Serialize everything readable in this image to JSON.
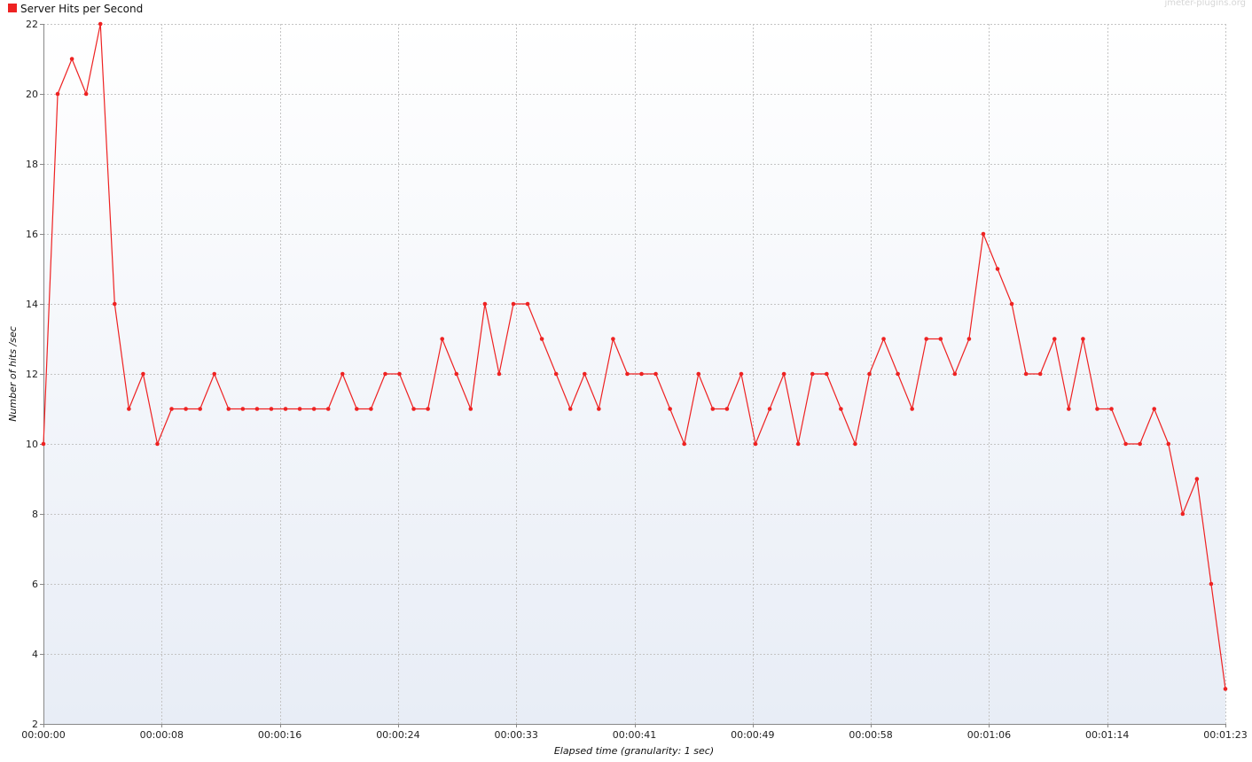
{
  "watermark": "jmeter-plugins.org",
  "chart_data": {
    "type": "line",
    "legend_position": "top-left",
    "grid": true,
    "xlabel": "Elapsed time (granularity: 1 sec)",
    "ylabel": "Number of hits /sec",
    "ylim": [
      2,
      22
    ],
    "y_ticks": [
      2,
      4,
      6,
      8,
      10,
      12,
      14,
      16,
      18,
      20,
      22
    ],
    "xlim_seconds": [
      0,
      83
    ],
    "x_ticks": [
      {
        "seconds": 0,
        "label": "00:00:00"
      },
      {
        "seconds": 8.3,
        "label": "00:00:08"
      },
      {
        "seconds": 16.6,
        "label": "00:00:16"
      },
      {
        "seconds": 24.9,
        "label": "00:00:24"
      },
      {
        "seconds": 33.2,
        "label": "00:00:33"
      },
      {
        "seconds": 41.5,
        "label": "00:00:41"
      },
      {
        "seconds": 49.8,
        "label": "00:00:49"
      },
      {
        "seconds": 58.1,
        "label": "00:00:58"
      },
      {
        "seconds": 66.4,
        "label": "00:01:06"
      },
      {
        "seconds": 74.7,
        "label": "00:01:14"
      },
      {
        "seconds": 83,
        "label": "00:01:23"
      }
    ],
    "series": [
      {
        "name": "Server Hits per Second",
        "color": "#ee2222",
        "x_seconds": [
          0,
          1,
          2,
          3,
          4,
          5,
          6,
          7,
          8,
          9,
          10,
          11,
          12,
          13,
          14,
          15,
          16,
          17,
          18,
          19,
          20,
          21,
          22,
          23,
          24,
          25,
          26,
          27,
          28,
          29,
          30,
          31,
          32,
          33,
          34,
          35,
          36,
          37,
          38,
          39,
          40,
          41,
          42,
          43,
          44,
          45,
          46,
          47,
          48,
          49,
          50,
          51,
          52,
          53,
          54,
          55,
          56,
          57,
          58,
          59,
          60,
          61,
          62,
          63,
          64,
          65,
          66,
          67,
          68,
          69,
          70,
          71,
          72,
          73,
          74,
          75,
          76,
          77,
          78,
          79,
          80,
          81,
          82,
          83
        ],
        "values": [
          10,
          20,
          21,
          20,
          22,
          14,
          11,
          12,
          10,
          11,
          11,
          11,
          12,
          11,
          11,
          11,
          11,
          11,
          11,
          11,
          11,
          12,
          11,
          11,
          12,
          12,
          11,
          11,
          13,
          12,
          11,
          14,
          12,
          14,
          14,
          13,
          12,
          11,
          12,
          11,
          13,
          12,
          12,
          12,
          11,
          10,
          12,
          11,
          11,
          12,
          10,
          11,
          12,
          10,
          12,
          12,
          11,
          10,
          12,
          13,
          12,
          11,
          13,
          13,
          12,
          13,
          16,
          15,
          14,
          12,
          12,
          13,
          11,
          13,
          11,
          11,
          10,
          10,
          11,
          10,
          8,
          9,
          6,
          3
        ]
      }
    ]
  }
}
